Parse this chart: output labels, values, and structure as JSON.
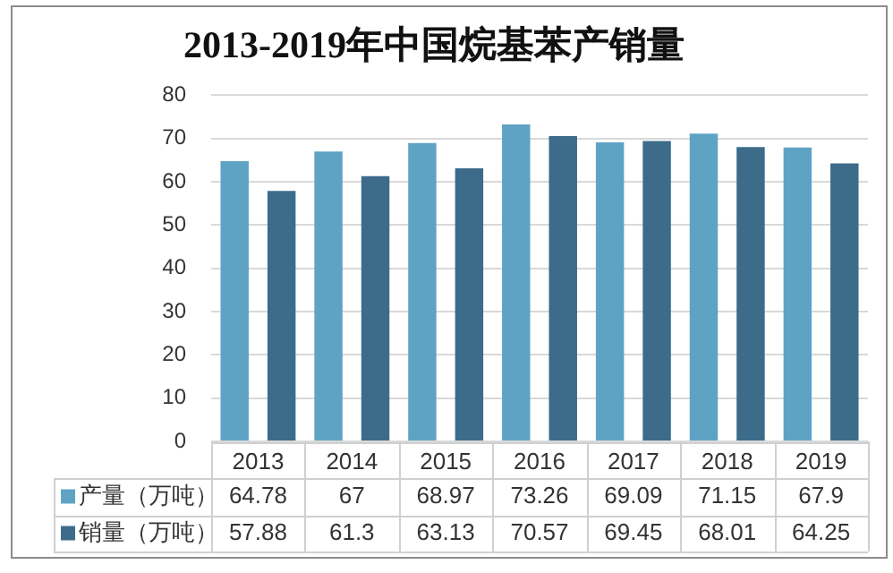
{
  "chart_data": {
    "type": "bar",
    "title": "2013-2019年中国烷基苯产销量",
    "categories": [
      "2013",
      "2014",
      "2015",
      "2016",
      "2017",
      "2018",
      "2019"
    ],
    "series": [
      {
        "name": "产量（万吨）",
        "color": "#5fa3c4",
        "values": [
          64.78,
          67,
          68.97,
          73.26,
          69.09,
          71.15,
          67.9
        ]
      },
      {
        "name": "销量（万吨）",
        "color": "#3d6b8a",
        "values": [
          57.88,
          61.3,
          63.13,
          70.57,
          69.45,
          68.01,
          64.25
        ]
      }
    ],
    "ylim": [
      0,
      80
    ],
    "yticks": [
      0,
      10,
      20,
      30,
      40,
      50,
      60,
      70,
      80
    ],
    "grid": "y",
    "legend": "bottom",
    "data_labels": true
  }
}
